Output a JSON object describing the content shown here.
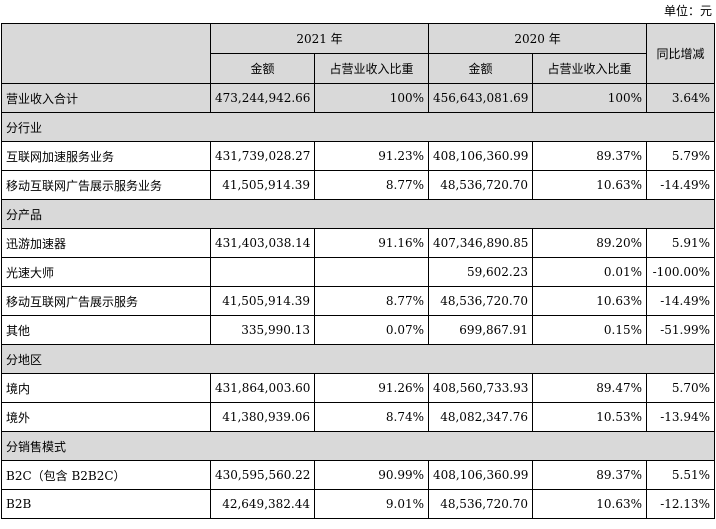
{
  "unit_label": "单位：元",
  "header": {
    "year_2021": "2021 年",
    "year_2020": "2020 年",
    "yoy": "同比增减",
    "amount": "金额",
    "ratio": "占营业收入比重"
  },
  "rows": [
    {
      "type": "total",
      "label": "营业收入合计",
      "a21": "473,244,942.66",
      "r21": "100%",
      "a20": "456,643,081.69",
      "r20": "100%",
      "yoy": "3.64%"
    },
    {
      "type": "section",
      "label": "分行业"
    },
    {
      "type": "data",
      "label": "互联网加速服务业务",
      "a21": "431,739,028.27",
      "r21": "91.23%",
      "a20": "408,106,360.99",
      "r20": "89.37%",
      "yoy": "5.79%"
    },
    {
      "type": "data",
      "label": "移动互联网广告展示服务业务",
      "a21": "41,505,914.39",
      "r21": "8.77%",
      "a20": "48,536,720.70",
      "r20": "10.63%",
      "yoy": "-14.49%"
    },
    {
      "type": "section",
      "label": "分产品"
    },
    {
      "type": "data",
      "label": "迅游加速器",
      "a21": "431,403,038.14",
      "r21": "91.16%",
      "a20": "407,346,890.85",
      "r20": "89.20%",
      "yoy": "5.91%"
    },
    {
      "type": "data",
      "label": "光速大师",
      "a21": "",
      "r21": "",
      "a20": "59,602.23",
      "r20": "0.01%",
      "yoy": "-100.00%"
    },
    {
      "type": "data",
      "label": "移动互联网广告展示服务",
      "a21": "41,505,914.39",
      "r21": "8.77%",
      "a20": "48,536,720.70",
      "r20": "10.63%",
      "yoy": "-14.49%"
    },
    {
      "type": "data",
      "label": "其他",
      "a21": "335,990.13",
      "r21": "0.07%",
      "a20": "699,867.91",
      "r20": "0.15%",
      "yoy": "-51.99%"
    },
    {
      "type": "section",
      "label": "分地区"
    },
    {
      "type": "data",
      "label": "境内",
      "a21": "431,864,003.60",
      "r21": "91.26%",
      "a20": "408,560,733.93",
      "r20": "89.47%",
      "yoy": "5.70%"
    },
    {
      "type": "data",
      "label": "境外",
      "a21": "41,380,939.06",
      "r21": "8.74%",
      "a20": "48,082,347.76",
      "r20": "10.53%",
      "yoy": "-13.94%"
    },
    {
      "type": "section",
      "label": "分销售模式"
    },
    {
      "type": "data",
      "label": "B2C（包含 B2B2C）",
      "a21": "430,595,560.22",
      "r21": "90.99%",
      "a20": "408,106,360.99",
      "r20": "89.37%",
      "yoy": "5.51%"
    },
    {
      "type": "data",
      "label": "B2B",
      "a21": "42,649,382.44",
      "r21": "9.01%",
      "a20": "48,536,720.70",
      "r20": "10.63%",
      "yoy": "-12.13%"
    }
  ]
}
